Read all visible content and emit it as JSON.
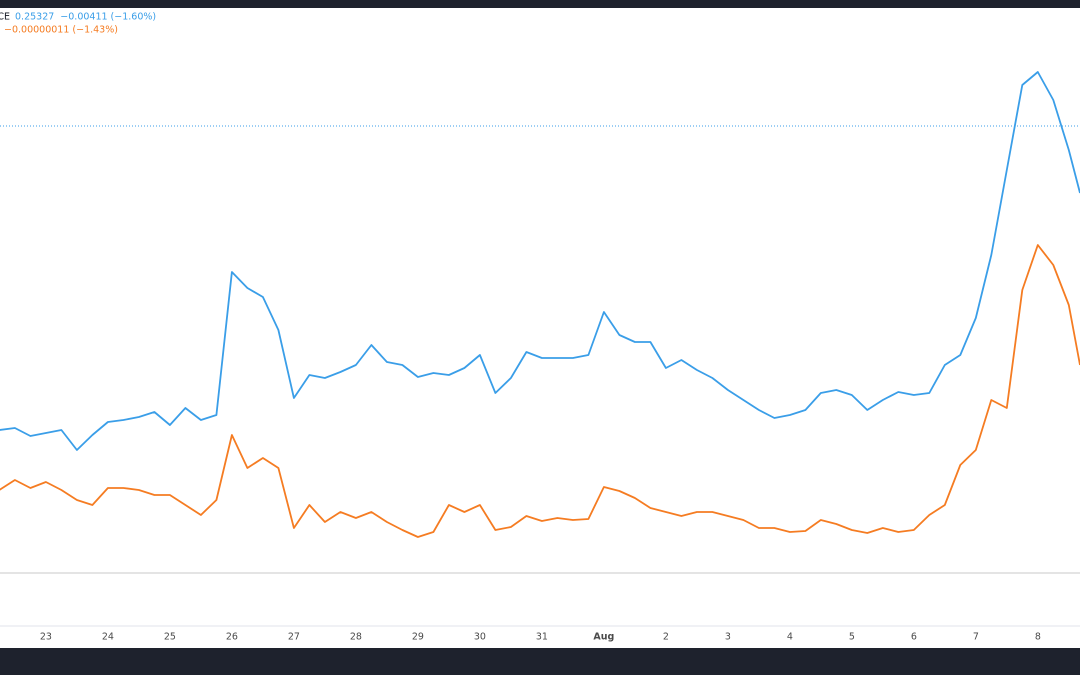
{
  "chart_data": {
    "type": "line",
    "x": [
      22.25,
      22.5,
      22.75,
      23,
      23.25,
      23.5,
      23.75,
      24,
      24.25,
      24.5,
      24.75,
      25,
      25.25,
      25.5,
      25.75,
      26,
      26.25,
      26.5,
      26.75,
      27,
      27.25,
      27.5,
      27.75,
      28,
      28.25,
      28.5,
      28.75,
      29,
      29.25,
      29.5,
      29.75,
      30,
      30.25,
      30.5,
      30.75,
      31,
      31.25,
      31.5,
      31.75,
      32,
      32.25,
      32.5,
      32.75,
      33,
      33.25,
      33.5,
      33.75,
      34,
      34.25,
      34.5,
      34.75,
      35,
      35.25,
      35.5,
      35.75,
      36,
      36.25,
      36.5,
      36.75,
      37,
      37.25,
      37.5,
      37.75,
      38,
      38.25,
      38.5,
      38.75,
      39,
      39.25,
      39.5,
      39.68
    ],
    "series": [
      {
        "name": "CE",
        "color": "#3a9ee8",
        "legend_values": [
          "0.25327",
          "−0.00411 (−1.60%)"
        ],
        "values": [
          218,
          220,
          212,
          215,
          218,
          198,
          213,
          226,
          228,
          231,
          236,
          223,
          240,
          228,
          233,
          376,
          360,
          351,
          318,
          250,
          273,
          270,
          276,
          283,
          303,
          286,
          283,
          271,
          275,
          273,
          280,
          293,
          255,
          270,
          296,
          290,
          290,
          290,
          293,
          336,
          313,
          306,
          306,
          280,
          288,
          278,
          270,
          258,
          248,
          238,
          230,
          233,
          238,
          255,
          258,
          253,
          238,
          248,
          256,
          253,
          255,
          283,
          293,
          330,
          393,
          478,
          563,
          576,
          548,
          498,
          455
        ]
      },
      {
        "color": "#f57c22",
        "legend_values": [
          "−0.00000011 (−1.43%)"
        ],
        "values": [
          158,
          168,
          160,
          166,
          158,
          148,
          143,
          160,
          160,
          158,
          153,
          153,
          143,
          133,
          148,
          213,
          180,
          190,
          180,
          120,
          143,
          126,
          136,
          130,
          136,
          126,
          118,
          111,
          116,
          143,
          136,
          143,
          118,
          121,
          132,
          127,
          130,
          128,
          129,
          161,
          157,
          150,
          140,
          136,
          132,
          136,
          136,
          132,
          128,
          120,
          120,
          116,
          117,
          128,
          124,
          118,
          115,
          120,
          116,
          118,
          133,
          143,
          183,
          198,
          248,
          240,
          358,
          403,
          383,
          343,
          283
        ]
      }
    ],
    "xlim": [
      22.26,
      39.68
    ],
    "xticks": [
      23,
      24,
      25,
      26,
      27,
      28,
      29,
      30,
      31,
      {
        "value": 32,
        "label": "Aug"
      },
      {
        "value": 33,
        "label": "2"
      },
      {
        "value": 34,
        "label": "3"
      },
      {
        "value": 35,
        "label": "4"
      },
      {
        "value": 36,
        "label": "5"
      },
      {
        "value": 37,
        "label": "6"
      },
      {
        "value": 38,
        "label": "7"
      },
      {
        "value": 39,
        "label": "8"
      }
    ],
    "ylim": [
      0,
      640
    ],
    "reference_lines": [
      {
        "value": 522,
        "color": "#3a9ee8",
        "style": "dotted"
      },
      {
        "value": 75,
        "color": "#c8c8c8",
        "style": "solid"
      }
    ]
  }
}
